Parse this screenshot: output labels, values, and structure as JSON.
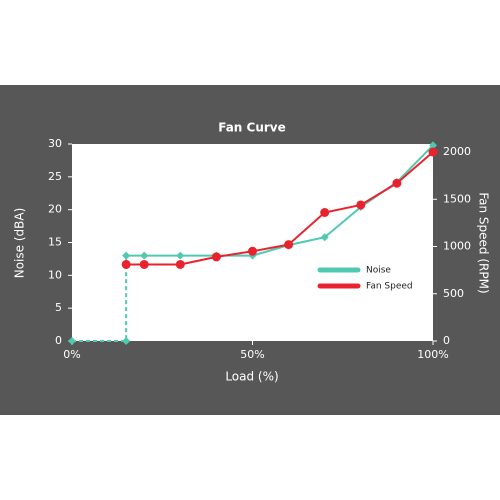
{
  "chart_data": {
    "type": "line",
    "title": "Fan Curve",
    "x_label": "Load (%)",
    "y_label": "Noise (dBA)",
    "y2_label": "Fan Speed (RPM)",
    "xlim": [
      0,
      100
    ],
    "xticks": [
      {
        "value": 0,
        "label": "0%"
      },
      {
        "value": 50,
        "label": "50%"
      },
      {
        "value": 100,
        "label": "100%"
      }
    ],
    "ylim": [
      0,
      30
    ],
    "yticks": [
      0,
      5,
      10,
      15,
      20,
      25,
      30
    ],
    "y2lim": [
      0,
      2085
    ],
    "y2ticks": [
      0,
      500,
      1000,
      1500,
      2000
    ],
    "legend": "lower right",
    "series": [
      {
        "name": "Noise",
        "color": "#4fc9b0",
        "marker": "diamond",
        "axis": "y",
        "x": [
          0,
          15,
          15,
          20,
          30,
          40,
          50,
          60,
          70,
          80,
          90,
          100
        ],
        "values": [
          0,
          0,
          13,
          13,
          13,
          13,
          13,
          14.6,
          15.8,
          20.4,
          24.2,
          29.8
        ]
      },
      {
        "name": "Fan Speed",
        "color": "#e8232d",
        "marker": "circle",
        "axis": "y2",
        "x": [
          15,
          20,
          30,
          40,
          50,
          60,
          70,
          80,
          90,
          100
        ],
        "values": [
          810,
          810,
          810,
          890,
          950,
          1020,
          1360,
          1440,
          1670,
          2000
        ]
      }
    ]
  }
}
